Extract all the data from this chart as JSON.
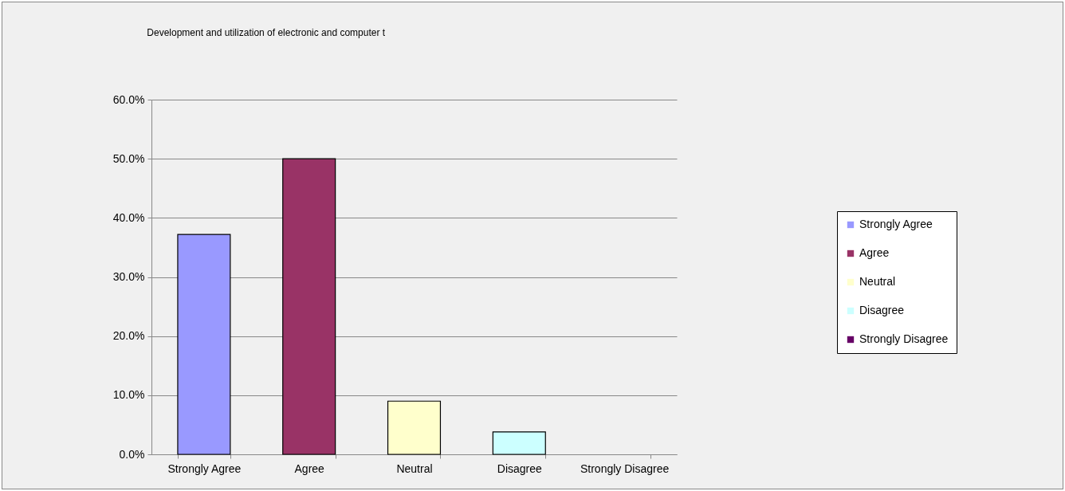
{
  "chart_data": {
    "type": "bar",
    "title": "Development and utilization of electronic and computer t",
    "categories": [
      "Strongly Agree",
      "Agree",
      "Neutral",
      "Disagree",
      "Strongly Disagree"
    ],
    "series": [
      {
        "name": "Strongly Agree",
        "color": "#9999ff",
        "values": [
          37.2,
          null,
          null,
          null,
          null
        ]
      },
      {
        "name": "Agree",
        "color": "#993366",
        "values": [
          null,
          50,
          null,
          null,
          null
        ]
      },
      {
        "name": "Neutral",
        "color": "#ffffcc",
        "values": [
          null,
          null,
          9.0,
          null,
          null
        ]
      },
      {
        "name": "Disagree",
        "color": "#ccffff",
        "values": [
          null,
          null,
          null,
          3.8,
          null
        ]
      },
      {
        "name": "Strongly Disagree",
        "color": "#660066",
        "values": [
          null,
          null,
          null,
          null,
          0
        ]
      }
    ],
    "stacked": true,
    "ylim": [
      0,
      60
    ],
    "yticks": [
      {
        "value": 0,
        "label": "0.0%"
      },
      {
        "value": 10,
        "label": "10.0%"
      },
      {
        "value": 20,
        "label": "20.0%"
      },
      {
        "value": 30,
        "label": "30.0%"
      },
      {
        "value": 40,
        "label": "40.0%"
      },
      {
        "value": 50,
        "label": "50.0%"
      },
      {
        "value": 60,
        "label": "60.0%"
      }
    ],
    "grid": "y",
    "legend": "right"
  }
}
